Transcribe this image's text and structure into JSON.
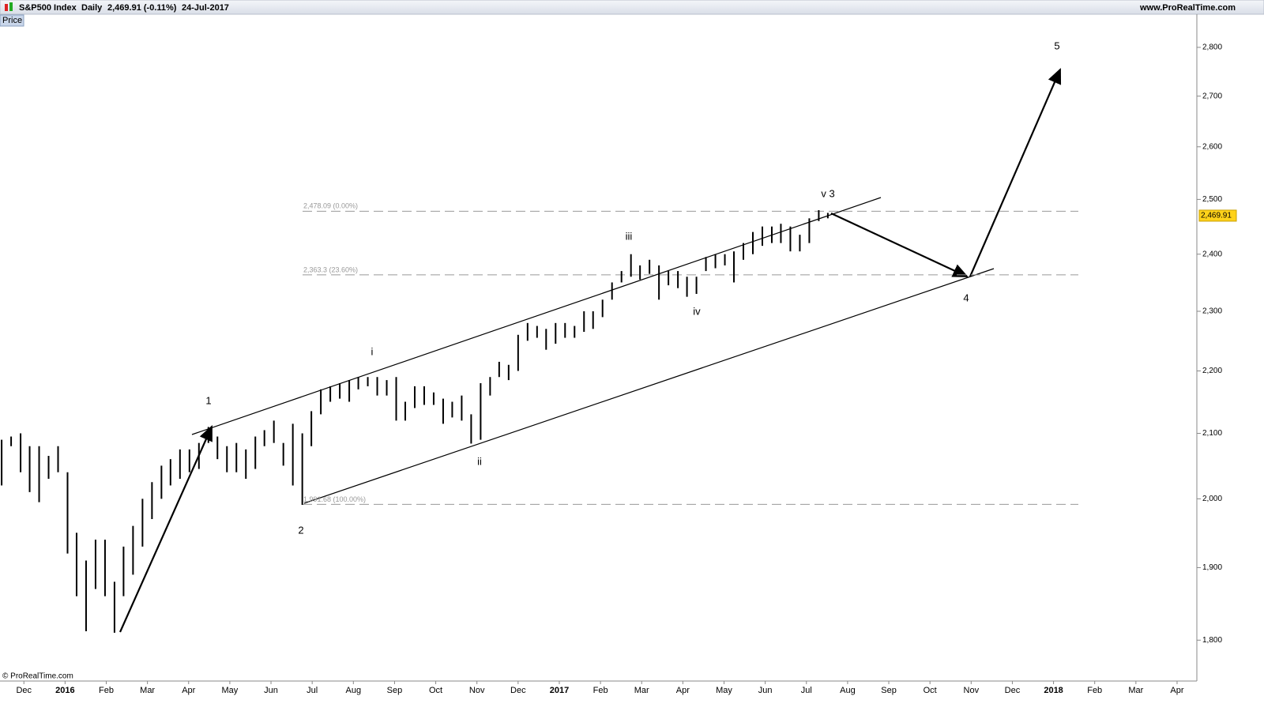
{
  "header": {
    "instrument": "S&P500 Index",
    "period": "Daily",
    "quote": "2,469.91 (-0.11%)",
    "date": "24-Jul-2017",
    "site": "www.ProRealTime.com"
  },
  "panel_label": "Price",
  "copyright": "© ProRealTime.com",
  "chart_data": {
    "type": "ohlc",
    "color": "#000000",
    "log": true,
    "xlim": [
      -0.58,
      28.48
    ],
    "xticks": [
      {
        "value": 0,
        "label": "Dec"
      },
      {
        "value": 1,
        "label": "2016"
      },
      {
        "value": 2,
        "label": "Feb"
      },
      {
        "value": 3,
        "label": "Mar"
      },
      {
        "value": 4,
        "label": "Apr"
      },
      {
        "value": 5,
        "label": "May"
      },
      {
        "value": 6,
        "label": "Jun"
      },
      {
        "value": 7,
        "label": "Jul"
      },
      {
        "value": 8,
        "label": "Aug"
      },
      {
        "value": 9,
        "label": "Sep"
      },
      {
        "value": 10,
        "label": "Oct"
      },
      {
        "value": 11,
        "label": "Nov"
      },
      {
        "value": 12,
        "label": "Dec"
      },
      {
        "value": 13,
        "label": "2017"
      },
      {
        "value": 14,
        "label": "Feb"
      },
      {
        "value": 15,
        "label": "Mar"
      },
      {
        "value": 16,
        "label": "Apr"
      },
      {
        "value": 17,
        "label": "May"
      },
      {
        "value": 18,
        "label": "Jun"
      },
      {
        "value": 19,
        "label": "Jul"
      },
      {
        "value": 20,
        "label": "Aug"
      },
      {
        "value": 21,
        "label": "Sep"
      },
      {
        "value": 22,
        "label": "Oct"
      },
      {
        "value": 23,
        "label": "Nov"
      },
      {
        "value": 24,
        "label": "Dec"
      },
      {
        "value": 25,
        "label": "2018"
      },
      {
        "value": 26,
        "label": "Feb"
      },
      {
        "value": 27,
        "label": "Mar"
      },
      {
        "value": 28,
        "label": "Apr"
      }
    ],
    "ylim": [
      1746,
      2870
    ],
    "yticks": [
      {
        "value": 1800,
        "label": "1,800"
      },
      {
        "value": 1900,
        "label": "1,900"
      },
      {
        "value": 2000,
        "label": "2,000"
      },
      {
        "value": 2100,
        "label": "2,100"
      },
      {
        "value": 2200,
        "label": "2,200"
      },
      {
        "value": 2300,
        "label": "2,300"
      },
      {
        "value": 2400,
        "label": "2,400"
      },
      {
        "value": 2500,
        "label": "2,500"
      },
      {
        "value": 2600,
        "label": "2,600"
      },
      {
        "value": 2700,
        "label": "2,700"
      },
      {
        "value": 2800,
        "label": "2,800"
      }
    ],
    "x": [
      -0.54,
      -0.31,
      -0.08,
      0.14,
      0.37,
      0.6,
      0.83,
      1.06,
      1.28,
      1.51,
      1.74,
      1.97,
      2.2,
      2.42,
      2.65,
      2.88,
      3.11,
      3.34,
      3.56,
      3.79,
      4.02,
      4.25,
      4.48,
      4.7,
      4.93,
      5.16,
      5.39,
      5.62,
      5.84,
      6.07,
      6.3,
      6.53,
      6.76,
      6.98,
      7.21,
      7.44,
      7.67,
      7.9,
      8.12,
      8.35,
      8.58,
      8.81,
      9.04,
      9.26,
      9.49,
      9.72,
      9.95,
      10.18,
      10.4,
      10.63,
      10.86,
      11.09,
      11.32,
      11.54,
      11.77,
      12.0,
      12.23,
      12.46,
      12.68,
      12.91,
      13.14,
      13.37,
      13.6,
      13.82,
      14.05,
      14.28,
      14.51,
      14.74,
      14.96,
      15.19,
      15.42,
      15.65,
      15.88,
      16.1,
      16.33,
      16.56,
      16.79,
      17.02,
      17.24,
      17.47,
      17.7,
      17.93,
      18.16,
      18.38,
      18.61,
      18.84,
      19.07,
      19.3,
      19.52
    ],
    "lows": [
      2020,
      2080,
      2040,
      2010,
      1995,
      2030,
      2040,
      1920,
      1860,
      1812,
      1870,
      1860,
      1810,
      1860,
      1890,
      1930,
      1970,
      2000,
      2020,
      2030,
      2040,
      2045,
      2085,
      2060,
      2040,
      2040,
      2030,
      2045,
      2080,
      2085,
      2050,
      2020,
      1991,
      2080,
      2130,
      2150,
      2155,
      2150,
      2170,
      2175,
      2160,
      2160,
      2120,
      2120,
      2140,
      2145,
      2145,
      2115,
      2125,
      2120,
      2084,
      2090,
      2160,
      2190,
      2185,
      2200,
      2250,
      2255,
      2235,
      2245,
      2255,
      2255,
      2265,
      2270,
      2290,
      2320,
      2350,
      2360,
      2355,
      2365,
      2320,
      2345,
      2340,
      2325,
      2330,
      2370,
      2375,
      2380,
      2350,
      2390,
      2400,
      2415,
      2420,
      2420,
      2405,
      2405,
      2420,
      2460,
      2465
    ],
    "highs": [
      2090,
      2095,
      2100,
      2080,
      2080,
      2065,
      2080,
      2040,
      1950,
      1910,
      1940,
      1940,
      1880,
      1930,
      1960,
      2000,
      2025,
      2050,
      2060,
      2075,
      2075,
      2085,
      2110,
      2095,
      2080,
      2085,
      2075,
      2095,
      2105,
      2120,
      2085,
      2115,
      2100,
      2135,
      2170,
      2175,
      2180,
      2185,
      2190,
      2190,
      2190,
      2185,
      2190,
      2150,
      2175,
      2175,
      2165,
      2155,
      2150,
      2160,
      2130,
      2180,
      2190,
      2215,
      2210,
      2260,
      2280,
      2275,
      2270,
      2280,
      2280,
      2275,
      2300,
      2300,
      2320,
      2350,
      2370,
      2400,
      2380,
      2390,
      2380,
      2370,
      2370,
      2360,
      2360,
      2395,
      2400,
      2400,
      2405,
      2420,
      2440,
      2450,
      2450,
      2455,
      2450,
      2435,
      2465,
      2480,
      2475
    ],
    "last_price": {
      "value": 2469.91,
      "label": "2,469.91"
    },
    "fib_levels": [
      {
        "value": 2478.09,
        "label": "2,478.09 (0.00%)"
      },
      {
        "value": 2363.3,
        "label": "2,363.3 (23.60%)"
      },
      {
        "value": 1991.68,
        "label": "1,991.68 (100.00%)"
      }
    ],
    "wave_labels": [
      "1",
      "2",
      "i",
      "ii",
      "iii",
      "iv",
      "v 3",
      "4",
      "5"
    ]
  }
}
